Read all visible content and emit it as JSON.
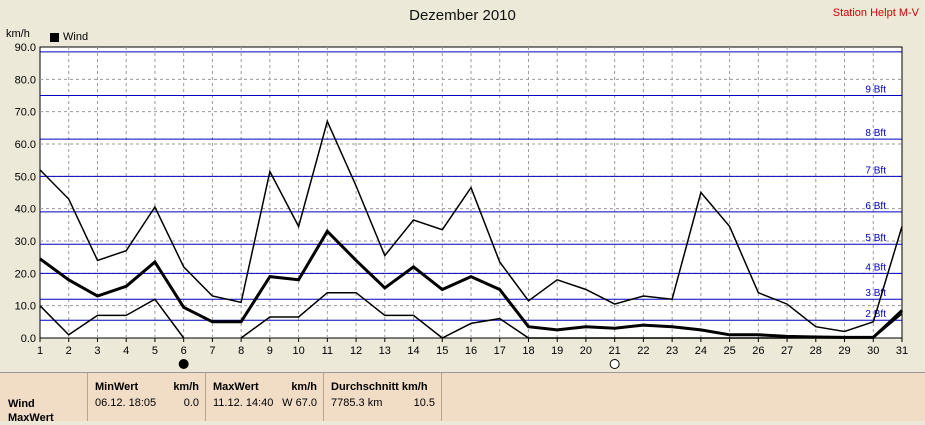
{
  "header": {
    "title": "Dezember 2010",
    "station": "Station Helpt M-V",
    "unit_label": "km/h",
    "legend_label": "Wind"
  },
  "colors": {
    "background": "#ece9d8",
    "plot_background": "#ffffff",
    "beaufort_line": "#0000c0",
    "series": "#000000",
    "table_background": "#f1dcc6",
    "station_text": "#d00000"
  },
  "chart_data": {
    "type": "line",
    "title": "Dezember 2010",
    "ylabel": "km/h",
    "ylim": [
      0,
      90
    ],
    "yticks": [
      "0.0",
      "10.0",
      "20.0",
      "30.0",
      "40.0",
      "50.0",
      "60.0",
      "70.0",
      "80.0",
      "90.0"
    ],
    "x": [
      1,
      2,
      3,
      4,
      5,
      6,
      7,
      8,
      9,
      10,
      11,
      12,
      13,
      14,
      15,
      16,
      17,
      18,
      19,
      20,
      21,
      22,
      23,
      24,
      25,
      26,
      27,
      28,
      29,
      30,
      31
    ],
    "grid": true,
    "legend": "top-left",
    "series": [
      {
        "name": "Wind",
        "role": "max",
        "values": [
          52,
          43,
          24,
          27,
          40.5,
          22,
          13,
          11,
          51.5,
          34.5,
          67,
          47,
          25.5,
          36.5,
          33.5,
          46.5,
          23.5,
          11.5,
          18,
          15,
          10.5,
          13,
          12,
          45,
          34.5,
          14,
          10.5,
          3.5,
          2,
          5,
          34.5
        ]
      },
      {
        "name": "Wind",
        "role": "mean",
        "values": [
          24.5,
          18,
          13,
          16,
          23.5,
          9.5,
          5,
          5,
          19,
          18,
          33,
          24,
          15.5,
          22,
          15,
          19,
          15,
          3.5,
          2.5,
          3.5,
          3,
          4,
          3.5,
          2.5,
          1,
          1,
          0.5,
          0.3,
          0.2,
          0.2,
          8.5
        ]
      },
      {
        "name": "Wind",
        "role": "min",
        "values": [
          10,
          1,
          7,
          7,
          12,
          0,
          null,
          0,
          6.5,
          6.5,
          14,
          14,
          7,
          7,
          0,
          4.5,
          6,
          0,
          0,
          0,
          0,
          0,
          0,
          0,
          0,
          0,
          0,
          0,
          0,
          0,
          7.5
        ]
      }
    ],
    "beaufort": [
      {
        "label": "2 Bft",
        "value": 5.5
      },
      {
        "label": "3 Bft",
        "value": 12
      },
      {
        "label": "4 Bft",
        "value": 20
      },
      {
        "label": "5 Bft",
        "value": 29
      },
      {
        "label": "6 Bft",
        "value": 39
      },
      {
        "label": "7 Bft",
        "value": 50
      },
      {
        "label": "8 Bft",
        "value": 61.5
      },
      {
        "label": "9 Bft",
        "value": 75
      },
      {
        "label": "",
        "value": 88.5
      }
    ],
    "markers": [
      {
        "type": "filled-circle",
        "x": 6
      },
      {
        "type": "open-circle",
        "x": 21
      }
    ]
  },
  "stats_table": {
    "row_labels": [
      "Wind",
      "MaxWert"
    ],
    "min": {
      "header": "MinWert",
      "unit": "km/h",
      "time": "06.12.  18:05",
      "value": "0.0"
    },
    "max": {
      "header": "MaxWert",
      "unit": "km/h",
      "time": "11.12.  14:40",
      "value": "W 67.0"
    },
    "avg": {
      "header": "Durchschnitt km/h",
      "total": "7785.3 km",
      "value": "10.5"
    }
  }
}
